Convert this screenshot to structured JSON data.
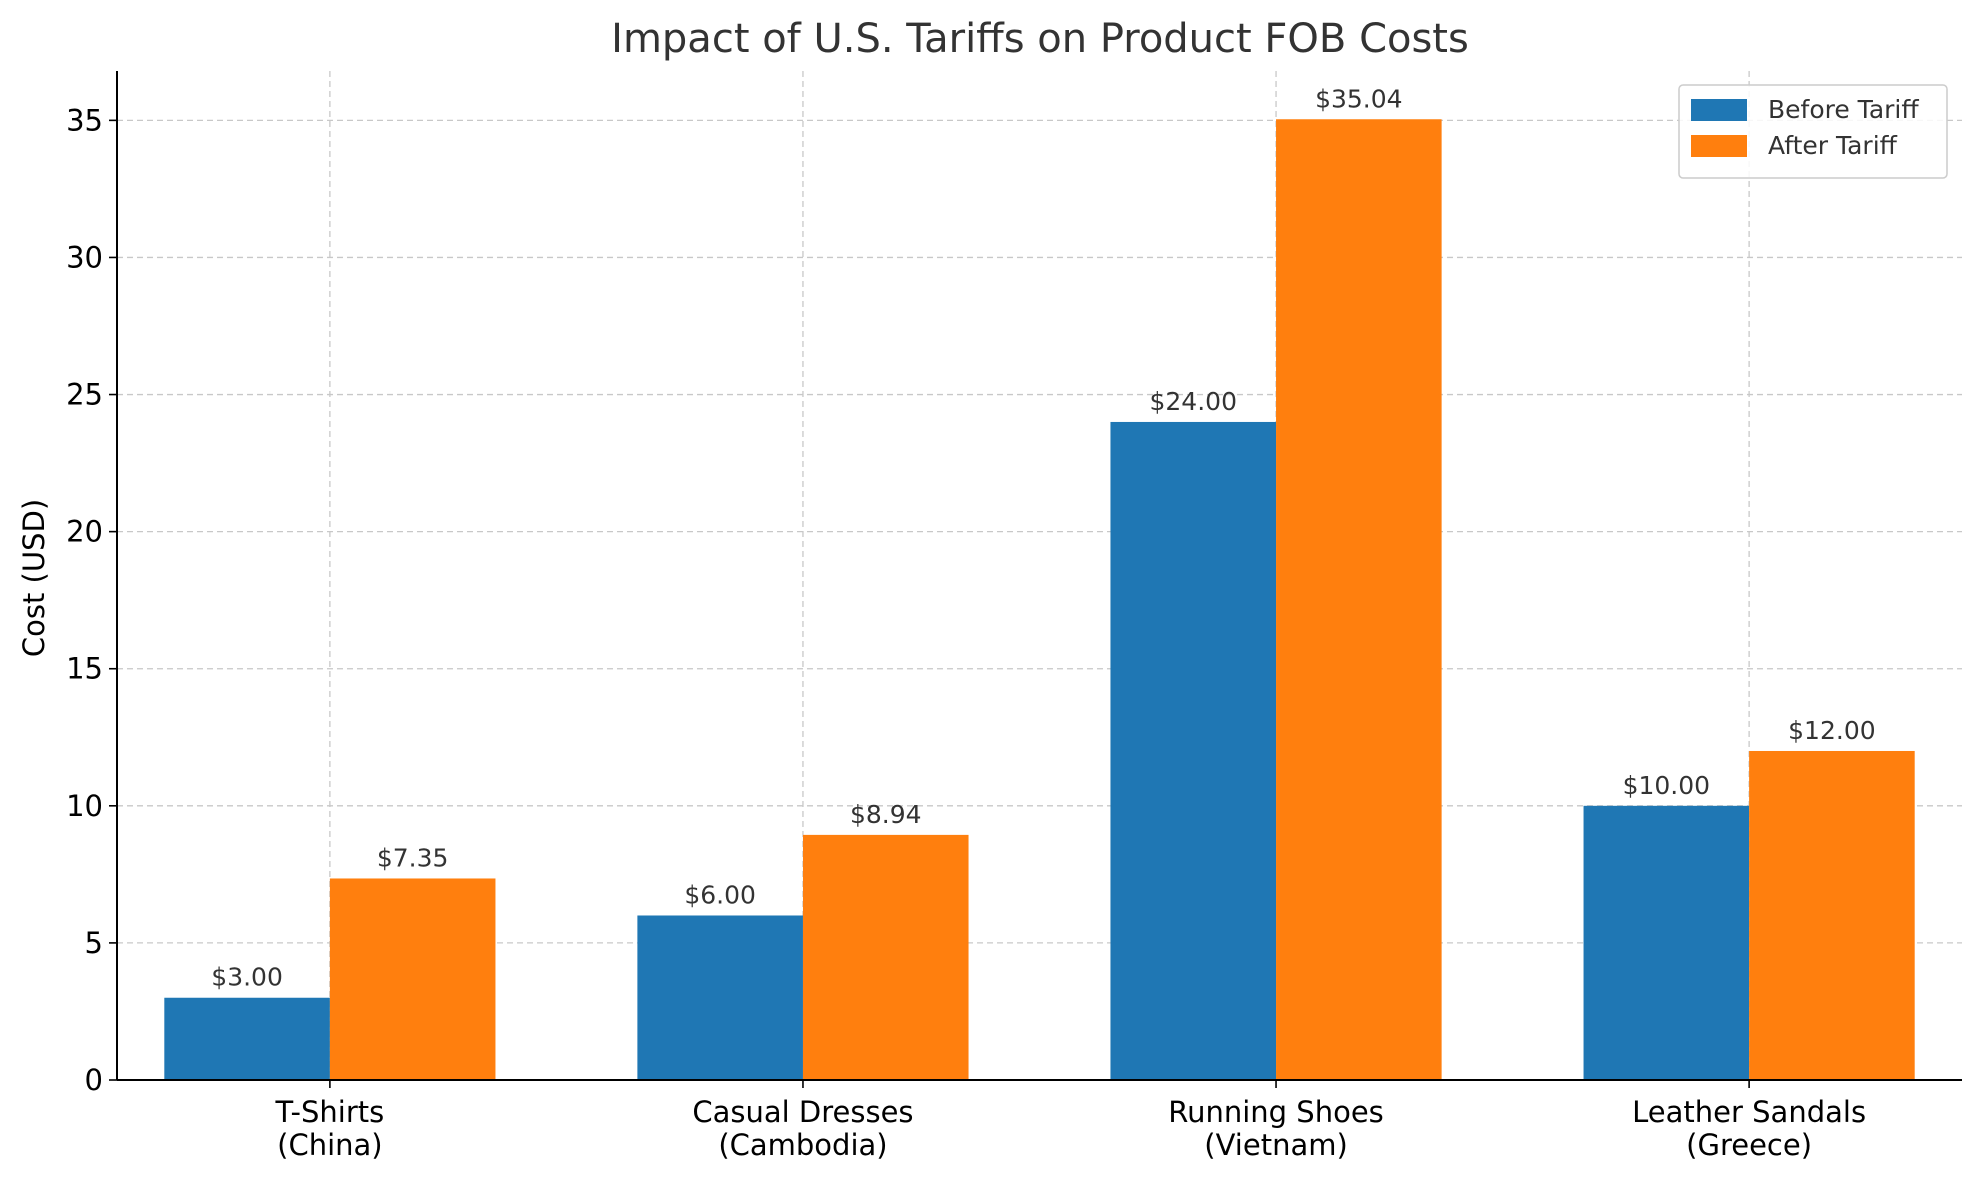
{
  "chart_data": {
    "type": "bar",
    "title": "Impact of U.S. Tariffs on Product FOB Costs",
    "xlabel": "",
    "ylabel": "Cost (USD)",
    "ylim": [
      0,
      36.8
    ],
    "yticks": [
      0,
      5,
      10,
      15,
      20,
      25,
      30,
      35
    ],
    "grid": true,
    "legend_position": "top-right",
    "categories": [
      [
        "T-Shirts",
        "(China)"
      ],
      [
        "Casual Dresses",
        "(Cambodia)"
      ],
      [
        "Running Shoes",
        "(Vietnam)"
      ],
      [
        "Leather Sandals",
        "(Greece)"
      ]
    ],
    "series": [
      {
        "name": "Before Tariff",
        "color": "#1f77b4",
        "values": [
          3.0,
          6.0,
          24.0,
          10.0
        ],
        "labels": [
          "$3.00",
          "$6.00",
          "$24.00",
          "$10.00"
        ]
      },
      {
        "name": "After Tariff",
        "color": "#ff7f0e",
        "values": [
          7.35,
          8.94,
          35.04,
          12.0
        ],
        "labels": [
          "$7.35",
          "$8.94",
          "$35.04",
          "$12.00"
        ]
      }
    ]
  }
}
